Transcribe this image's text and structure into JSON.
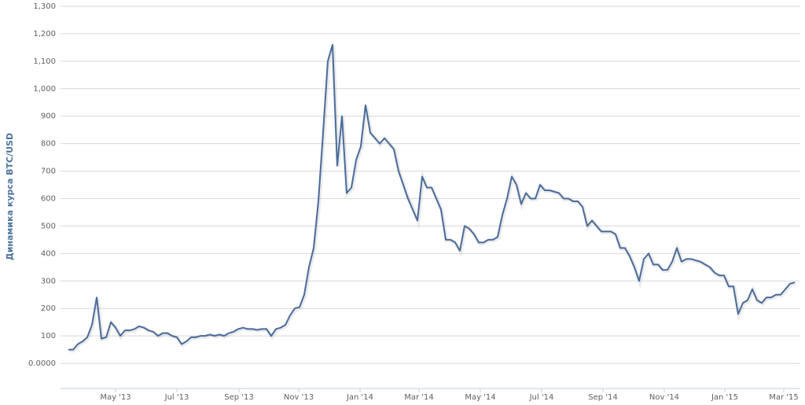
{
  "chart_data": {
    "type": "line",
    "y_label": "Динамика курса BTC/USD",
    "series": [
      {
        "name": "BTC/USD",
        "color": "#4a6c9b",
        "values": [
          50,
          50,
          70,
          80,
          95,
          140,
          240,
          90,
          95,
          150,
          130,
          100,
          120,
          120,
          125,
          135,
          130,
          120,
          115,
          100,
          110,
          110,
          100,
          95,
          70,
          80,
          95,
          95,
          100,
          100,
          105,
          100,
          105,
          100,
          110,
          115,
          125,
          130,
          125,
          125,
          122,
          125,
          125,
          100,
          125,
          130,
          140,
          175,
          200,
          205,
          250,
          350,
          420,
          590,
          840,
          1100,
          1160,
          720,
          900,
          620,
          640,
          740,
          790,
          940,
          840,
          820,
          800,
          820,
          800,
          780,
          700,
          650,
          600,
          560,
          520,
          680,
          640,
          640,
          600,
          560,
          450,
          450,
          440,
          410,
          500,
          490,
          470,
          440,
          440,
          450,
          450,
          460,
          540,
          600,
          680,
          650,
          580,
          620,
          600,
          600,
          650,
          630,
          630,
          625,
          620,
          600,
          600,
          590,
          590,
          570,
          500,
          520,
          500,
          480,
          480,
          480,
          470,
          420,
          420,
          390,
          350,
          300,
          380,
          400,
          360,
          360,
          340,
          340,
          370,
          420,
          370,
          380,
          380,
          375,
          370,
          360,
          350,
          330,
          320,
          320,
          280,
          280,
          180,
          220,
          230,
          270,
          230,
          220,
          240,
          240,
          250,
          250,
          270,
          290,
          295
        ]
      }
    ],
    "xlim": [
      -1.67,
      155.17
    ],
    "xticks": [
      {
        "value": 10,
        "label": "May '13"
      },
      {
        "value": 23,
        "label": "Jul '13"
      },
      {
        "value": 36.17,
        "label": "Sep '13"
      },
      {
        "value": 48.83,
        "label": "Nov '13"
      },
      {
        "value": 61.83,
        "label": "Jan '14"
      },
      {
        "value": 74.33,
        "label": "Mar '14"
      },
      {
        "value": 87.33,
        "label": "May '14"
      },
      {
        "value": 100.33,
        "label": "Jul '14"
      },
      {
        "value": 113.33,
        "label": "Sep '14"
      },
      {
        "value": 126.33,
        "label": "Nov '14"
      },
      {
        "value": 139.17,
        "label": "Jan '15"
      },
      {
        "value": 151.67,
        "label": "Mar '15"
      }
    ],
    "ylim": [
      -100,
      1300
    ],
    "yticks": [
      {
        "value": 0,
        "label": "0.0000"
      },
      100,
      200,
      300,
      400,
      500,
      600,
      700,
      800,
      900,
      {
        "value": 1000,
        "label": "1,000"
      },
      {
        "value": 1100,
        "label": "1,100"
      },
      {
        "value": 1200,
        "label": "1,200"
      },
      {
        "value": 1300,
        "label": "1,300"
      }
    ],
    "grid": true
  }
}
